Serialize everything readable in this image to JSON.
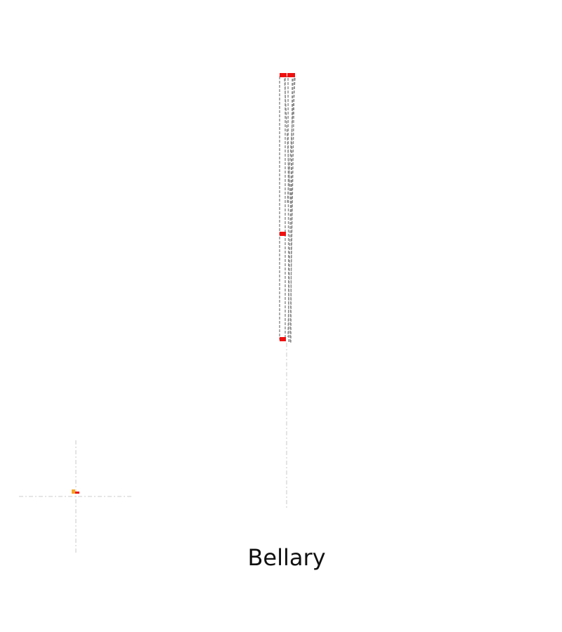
{
  "map": {
    "place_name": "Bellary",
    "colors": {
      "route_line": "#8c8c8c",
      "guide_line": "#d6d6d6",
      "node_marker": "#ee1111",
      "origin_marker": "#f5a623",
      "background": "#ffffff"
    },
    "icons": {
      "node": "red-square-marker-icon",
      "origin": "orange-flag-marker-icon"
    }
  }
}
